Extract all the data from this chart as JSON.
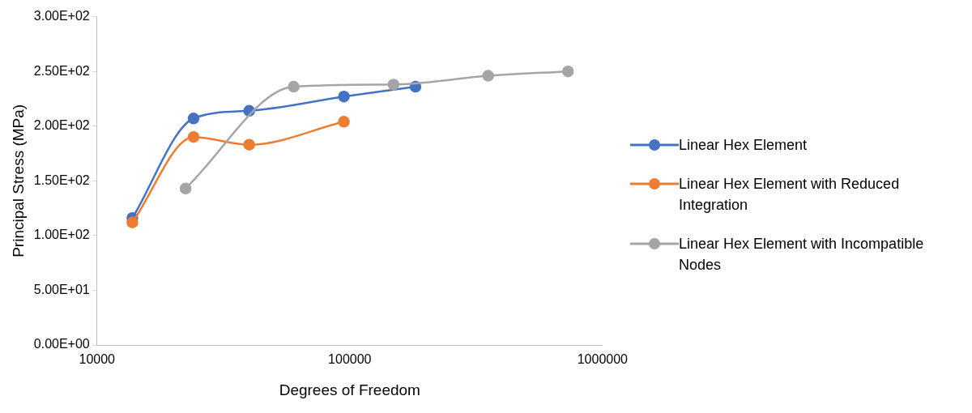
{
  "chart_data": {
    "type": "line",
    "xlabel": "Degrees of Freedom",
    "ylabel": "Principal Stress (MPa)",
    "log": "x",
    "xlim": [
      10000,
      1000000
    ],
    "xticks": [
      10000,
      100000,
      1000000
    ],
    "ylim": [
      0,
      300
    ],
    "yticks": [
      {
        "value": 0,
        "label": "0.00E+00"
      },
      {
        "value": 50,
        "label": "5.00E+01"
      },
      {
        "value": 100,
        "label": "1.00E+02"
      },
      {
        "value": 150,
        "label": "1.50E+02"
      },
      {
        "value": 200,
        "label": "2.00E+02"
      },
      {
        "value": 250,
        "label": "2.50E+02"
      },
      {
        "value": 300,
        "label": "3.00E+02"
      }
    ],
    "grid": false,
    "legend": "right",
    "marker": "circle",
    "line_style": "solid",
    "series": [
      {
        "name": "Linear Hex Element",
        "color": "#4472c4",
        "x": [
          13800,
          24100,
          40000,
          94800,
          182000
        ],
        "values": [
          116,
          207,
          214,
          227,
          236
        ]
      },
      {
        "name": "Linear Hex Element with Reduced Integration",
        "color": "#ed7d31",
        "x": [
          13800,
          24100,
          40000,
          94800
        ],
        "values": [
          112,
          190,
          183,
          204
        ]
      },
      {
        "name": "Linear Hex Element with Incompatible Nodes",
        "color": "#a5a5a5",
        "x": [
          22400,
          60000,
          149000,
          353000,
          730000
        ],
        "values": [
          143,
          236,
          238,
          246,
          250
        ]
      }
    ]
  }
}
